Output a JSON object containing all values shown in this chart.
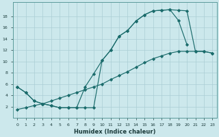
{
  "xlabel": "Humidex (Indice chaleur)",
  "bg_color": "#cce8ec",
  "grid_color": "#aacdd4",
  "line_color": "#1a6b6b",
  "line1_x": [
    0,
    1,
    2,
    3,
    4,
    5,
    6,
    7,
    8,
    9,
    10,
    11,
    12,
    13,
    14,
    15,
    16,
    17,
    18,
    19,
    20,
    21,
    22,
    23
  ],
  "line1_y": [
    5.5,
    4.5,
    3.0,
    2.5,
    2.2,
    1.8,
    1.8,
    1.8,
    1.8,
    1.8,
    10.2,
    12.0,
    14.5,
    15.5,
    17.2,
    18.3,
    19.0,
    19.1,
    19.2,
    19.1,
    19.0,
    11.8,
    11.8,
    11.5
  ],
  "line2_x": [
    0,
    1,
    2,
    3,
    4,
    5,
    6,
    7,
    8,
    9,
    10,
    11,
    12,
    13,
    14,
    15,
    16,
    17,
    18,
    19,
    20,
    21,
    22,
    23
  ],
  "line2_y": [
    5.5,
    4.5,
    3.0,
    2.5,
    2.2,
    1.8,
    1.8,
    1.8,
    5.5,
    7.8,
    10.2,
    12.0,
    14.5,
    15.5,
    17.2,
    18.3,
    19.0,
    19.1,
    19.2,
    17.3,
    13.0,
    null,
    null,
    null
  ],
  "line3_x": [
    0,
    1,
    2,
    3,
    4,
    5,
    6,
    7,
    8,
    9,
    10,
    11,
    12,
    13,
    14,
    15,
    16,
    17,
    18,
    19,
    20,
    21,
    22,
    23
  ],
  "line3_y": [
    1.5,
    1.8,
    2.2,
    2.5,
    3.0,
    3.5,
    4.0,
    4.5,
    5.0,
    5.5,
    6.0,
    6.8,
    7.5,
    8.2,
    9.0,
    9.8,
    10.5,
    11.0,
    11.5,
    11.8,
    11.8,
    11.8,
    11.8,
    11.5
  ],
  "ylim": [
    0,
    20
  ],
  "xlim": [
    -0.5,
    23.5
  ],
  "yticks": [
    2,
    4,
    6,
    8,
    10,
    12,
    14,
    16,
    18
  ],
  "xticks": [
    0,
    1,
    2,
    3,
    4,
    5,
    6,
    7,
    8,
    9,
    10,
    11,
    12,
    13,
    14,
    15,
    16,
    17,
    18,
    19,
    20,
    21,
    22,
    23
  ]
}
